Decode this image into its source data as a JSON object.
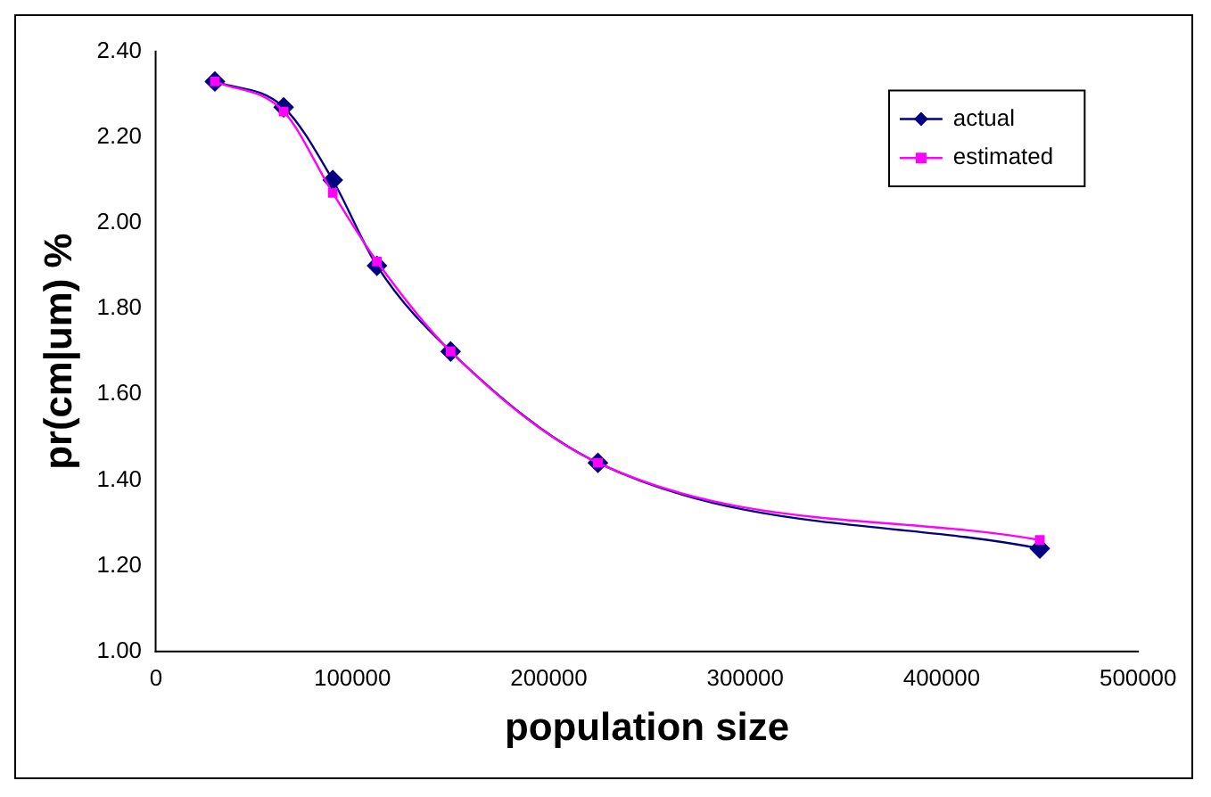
{
  "chart_data": {
    "type": "line",
    "xlabel": "population size",
    "ylabel": "pr(cm|um) %",
    "x": [
      30000,
      65000,
      90000,
      112500,
      150000,
      225000,
      450000
    ],
    "series": [
      {
        "name": "actual",
        "color": "#000080",
        "marker": "diamond",
        "values": [
          2.33,
          2.27,
          2.1,
          1.9,
          1.7,
          1.44,
          1.24
        ]
      },
      {
        "name": "estimated",
        "color": "#ff00ff",
        "marker": "square",
        "values": [
          2.33,
          2.26,
          2.07,
          1.91,
          1.7,
          1.44,
          1.26
        ]
      }
    ],
    "xlim": [
      0,
      500000
    ],
    "xticks": [
      0,
      100000,
      200000,
      300000,
      400000,
      500000
    ],
    "ylim": [
      1,
      2.4
    ],
    "yticks": [
      {
        "value": 1,
        "label": "1.00"
      },
      {
        "value": 1.2,
        "label": "1.20"
      },
      {
        "value": 1.4,
        "label": "1.40"
      },
      {
        "value": 1.6,
        "label": "1.60"
      },
      {
        "value": 1.8,
        "label": "1.80"
      },
      {
        "value": 2,
        "label": "2.00"
      },
      {
        "value": 2.2,
        "label": "2.20"
      },
      {
        "value": 2.4,
        "label": "2.40"
      }
    ],
    "grid": false,
    "legend": "top right",
    "line_style": "solid"
  }
}
